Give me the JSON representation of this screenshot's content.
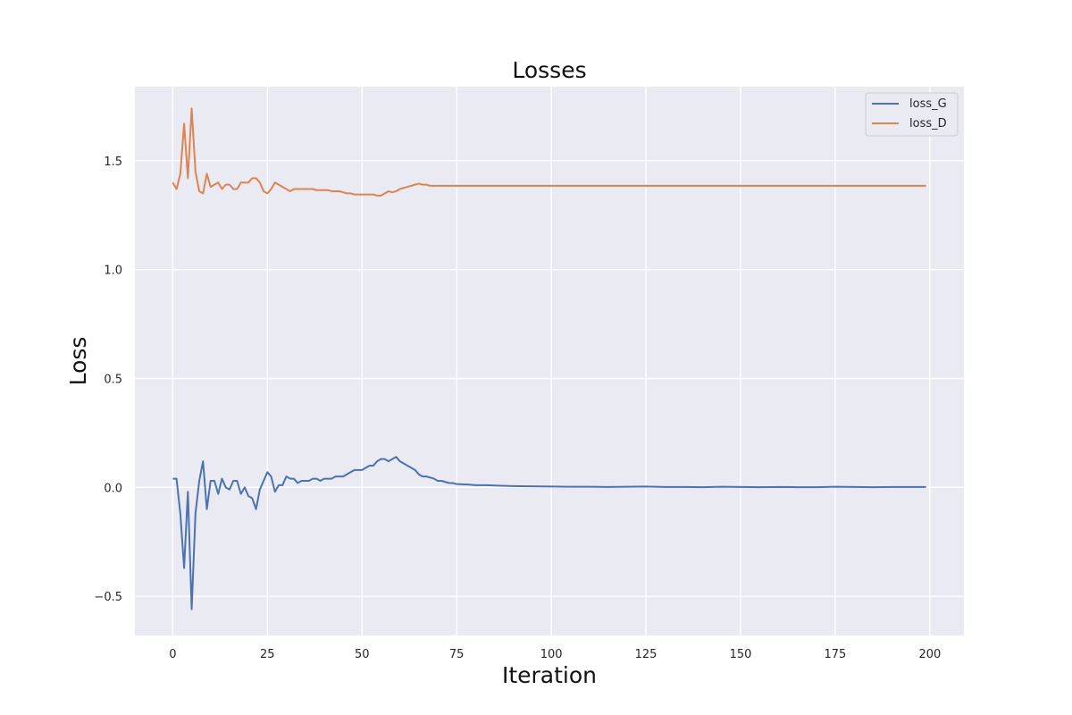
{
  "chart_data": {
    "type": "line",
    "title": "Losses",
    "xlabel": "Iteration",
    "ylabel": "Loss",
    "xlim": [
      -10,
      209
    ],
    "ylim": [
      -0.68,
      1.84
    ],
    "xticks": [
      0,
      25,
      50,
      75,
      100,
      125,
      150,
      175,
      200
    ],
    "yticks": [
      -0.5,
      0.0,
      0.5,
      1.0,
      1.5
    ],
    "xtick_labels": [
      "0",
      "25",
      "50",
      "75",
      "100",
      "125",
      "150",
      "175",
      "200"
    ],
    "ytick_labels": [
      "−0.5",
      "0.0",
      "0.5",
      "1.0",
      "1.5"
    ],
    "grid": true,
    "legend_position": "top-right",
    "background": "#eaeaf2",
    "series": [
      {
        "name": "loss_G",
        "color": "#4c72b0",
        "points": [
          [
            0,
            0.04
          ],
          [
            1,
            0.04
          ],
          [
            2,
            -0.12
          ],
          [
            3,
            -0.37
          ],
          [
            4,
            -0.02
          ],
          [
            5,
            -0.56
          ],
          [
            6,
            -0.12
          ],
          [
            7,
            0.03
          ],
          [
            8,
            0.12
          ],
          [
            9,
            -0.1
          ],
          [
            10,
            0.03
          ],
          [
            11,
            0.03
          ],
          [
            12,
            -0.03
          ],
          [
            13,
            0.04
          ],
          [
            14,
            0.0
          ],
          [
            15,
            -0.01
          ],
          [
            16,
            0.03
          ],
          [
            17,
            0.03
          ],
          [
            18,
            -0.03
          ],
          [
            19,
            0.0
          ],
          [
            20,
            -0.04
          ],
          [
            21,
            -0.05
          ],
          [
            22,
            -0.1
          ],
          [
            23,
            -0.01
          ],
          [
            24,
            0.03
          ],
          [
            25,
            0.07
          ],
          [
            26,
            0.05
          ],
          [
            27,
            -0.02
          ],
          [
            28,
            0.01
          ],
          [
            29,
            0.01
          ],
          [
            30,
            0.05
          ],
          [
            31,
            0.04
          ],
          [
            32,
            0.04
          ],
          [
            33,
            0.02
          ],
          [
            34,
            0.03
          ],
          [
            35,
            0.03
          ],
          [
            36,
            0.03
          ],
          [
            37,
            0.04
          ],
          [
            38,
            0.04
          ],
          [
            39,
            0.03
          ],
          [
            40,
            0.04
          ],
          [
            41,
            0.04
          ],
          [
            42,
            0.04
          ],
          [
            43,
            0.05
          ],
          [
            44,
            0.05
          ],
          [
            45,
            0.05
          ],
          [
            46,
            0.06
          ],
          [
            47,
            0.07
          ],
          [
            48,
            0.08
          ],
          [
            49,
            0.08
          ],
          [
            50,
            0.08
          ],
          [
            51,
            0.09
          ],
          [
            52,
            0.1
          ],
          [
            53,
            0.1
          ],
          [
            54,
            0.12
          ],
          [
            55,
            0.13
          ],
          [
            56,
            0.13
          ],
          [
            57,
            0.12
          ],
          [
            58,
            0.13
          ],
          [
            59,
            0.14
          ],
          [
            60,
            0.12
          ],
          [
            61,
            0.11
          ],
          [
            62,
            0.1
          ],
          [
            63,
            0.09
          ],
          [
            64,
            0.08
          ],
          [
            65,
            0.06
          ],
          [
            66,
            0.05
          ],
          [
            67,
            0.05
          ],
          [
            68,
            0.045
          ],
          [
            69,
            0.04
          ],
          [
            70,
            0.03
          ],
          [
            71,
            0.03
          ],
          [
            72,
            0.025
          ],
          [
            73,
            0.02
          ],
          [
            74,
            0.02
          ],
          [
            75,
            0.015
          ],
          [
            78,
            0.013
          ],
          [
            80,
            0.01
          ],
          [
            83,
            0.01
          ],
          [
            86,
            0.008
          ],
          [
            90,
            0.006
          ],
          [
            95,
            0.005
          ],
          [
            100,
            0.004
          ],
          [
            105,
            0.003
          ],
          [
            110,
            0.003
          ],
          [
            115,
            0.002
          ],
          [
            120,
            0.003
          ],
          [
            125,
            0.004
          ],
          [
            130,
            0.002
          ],
          [
            135,
            0.002
          ],
          [
            140,
            0.001
          ],
          [
            145,
            0.003
          ],
          [
            150,
            0.002
          ],
          [
            155,
            0.001
          ],
          [
            160,
            0.002
          ],
          [
            165,
            0.001
          ],
          [
            170,
            0.001
          ],
          [
            175,
            0.003
          ],
          [
            180,
            0.002
          ],
          [
            185,
            0.001
          ],
          [
            190,
            0.002
          ],
          [
            195,
            0.002
          ],
          [
            199,
            0.002
          ]
        ]
      },
      {
        "name": "loss_D",
        "color": "#dd8452",
        "points": [
          [
            0,
            1.4
          ],
          [
            1,
            1.37
          ],
          [
            2,
            1.44
          ],
          [
            3,
            1.67
          ],
          [
            4,
            1.42
          ],
          [
            5,
            1.74
          ],
          [
            6,
            1.45
          ],
          [
            7,
            1.36
          ],
          [
            8,
            1.35
          ],
          [
            9,
            1.44
          ],
          [
            10,
            1.38
          ],
          [
            11,
            1.39
          ],
          [
            12,
            1.4
          ],
          [
            13,
            1.37
          ],
          [
            14,
            1.39
          ],
          [
            15,
            1.39
          ],
          [
            16,
            1.37
          ],
          [
            17,
            1.37
          ],
          [
            18,
            1.4
          ],
          [
            19,
            1.4
          ],
          [
            20,
            1.4
          ],
          [
            21,
            1.42
          ],
          [
            22,
            1.42
          ],
          [
            23,
            1.4
          ],
          [
            24,
            1.36
          ],
          [
            25,
            1.35
          ],
          [
            26,
            1.37
          ],
          [
            27,
            1.4
          ],
          [
            28,
            1.39
          ],
          [
            29,
            1.38
          ],
          [
            30,
            1.37
          ],
          [
            31,
            1.36
          ],
          [
            32,
            1.37
          ],
          [
            33,
            1.37
          ],
          [
            34,
            1.37
          ],
          [
            35,
            1.37
          ],
          [
            36,
            1.37
          ],
          [
            37,
            1.37
          ],
          [
            38,
            1.365
          ],
          [
            39,
            1.365
          ],
          [
            40,
            1.365
          ],
          [
            41,
            1.365
          ],
          [
            42,
            1.36
          ],
          [
            43,
            1.36
          ],
          [
            44,
            1.36
          ],
          [
            45,
            1.355
          ],
          [
            46,
            1.35
          ],
          [
            47,
            1.35
          ],
          [
            48,
            1.345
          ],
          [
            49,
            1.345
          ],
          [
            50,
            1.345
          ],
          [
            51,
            1.345
          ],
          [
            52,
            1.345
          ],
          [
            53,
            1.345
          ],
          [
            54,
            1.34
          ],
          [
            55,
            1.34
          ],
          [
            56,
            1.35
          ],
          [
            57,
            1.36
          ],
          [
            58,
            1.355
          ],
          [
            59,
            1.36
          ],
          [
            60,
            1.37
          ],
          [
            61,
            1.375
          ],
          [
            62,
            1.38
          ],
          [
            63,
            1.385
          ],
          [
            64,
            1.39
          ],
          [
            65,
            1.395
          ],
          [
            66,
            1.39
          ],
          [
            67,
            1.39
          ],
          [
            68,
            1.385
          ],
          [
            69,
            1.385
          ],
          [
            70,
            1.385
          ],
          [
            71,
            1.385
          ],
          [
            72,
            1.385
          ],
          [
            73,
            1.385
          ],
          [
            74,
            1.385
          ],
          [
            75,
            1.385
          ],
          [
            80,
            1.385
          ],
          [
            85,
            1.385
          ],
          [
            90,
            1.385
          ],
          [
            100,
            1.385
          ],
          [
            110,
            1.385
          ],
          [
            120,
            1.385
          ],
          [
            130,
            1.385
          ],
          [
            140,
            1.385
          ],
          [
            150,
            1.385
          ],
          [
            160,
            1.385
          ],
          [
            170,
            1.385
          ],
          [
            180,
            1.385
          ],
          [
            190,
            1.385
          ],
          [
            199,
            1.385
          ]
        ]
      }
    ]
  }
}
